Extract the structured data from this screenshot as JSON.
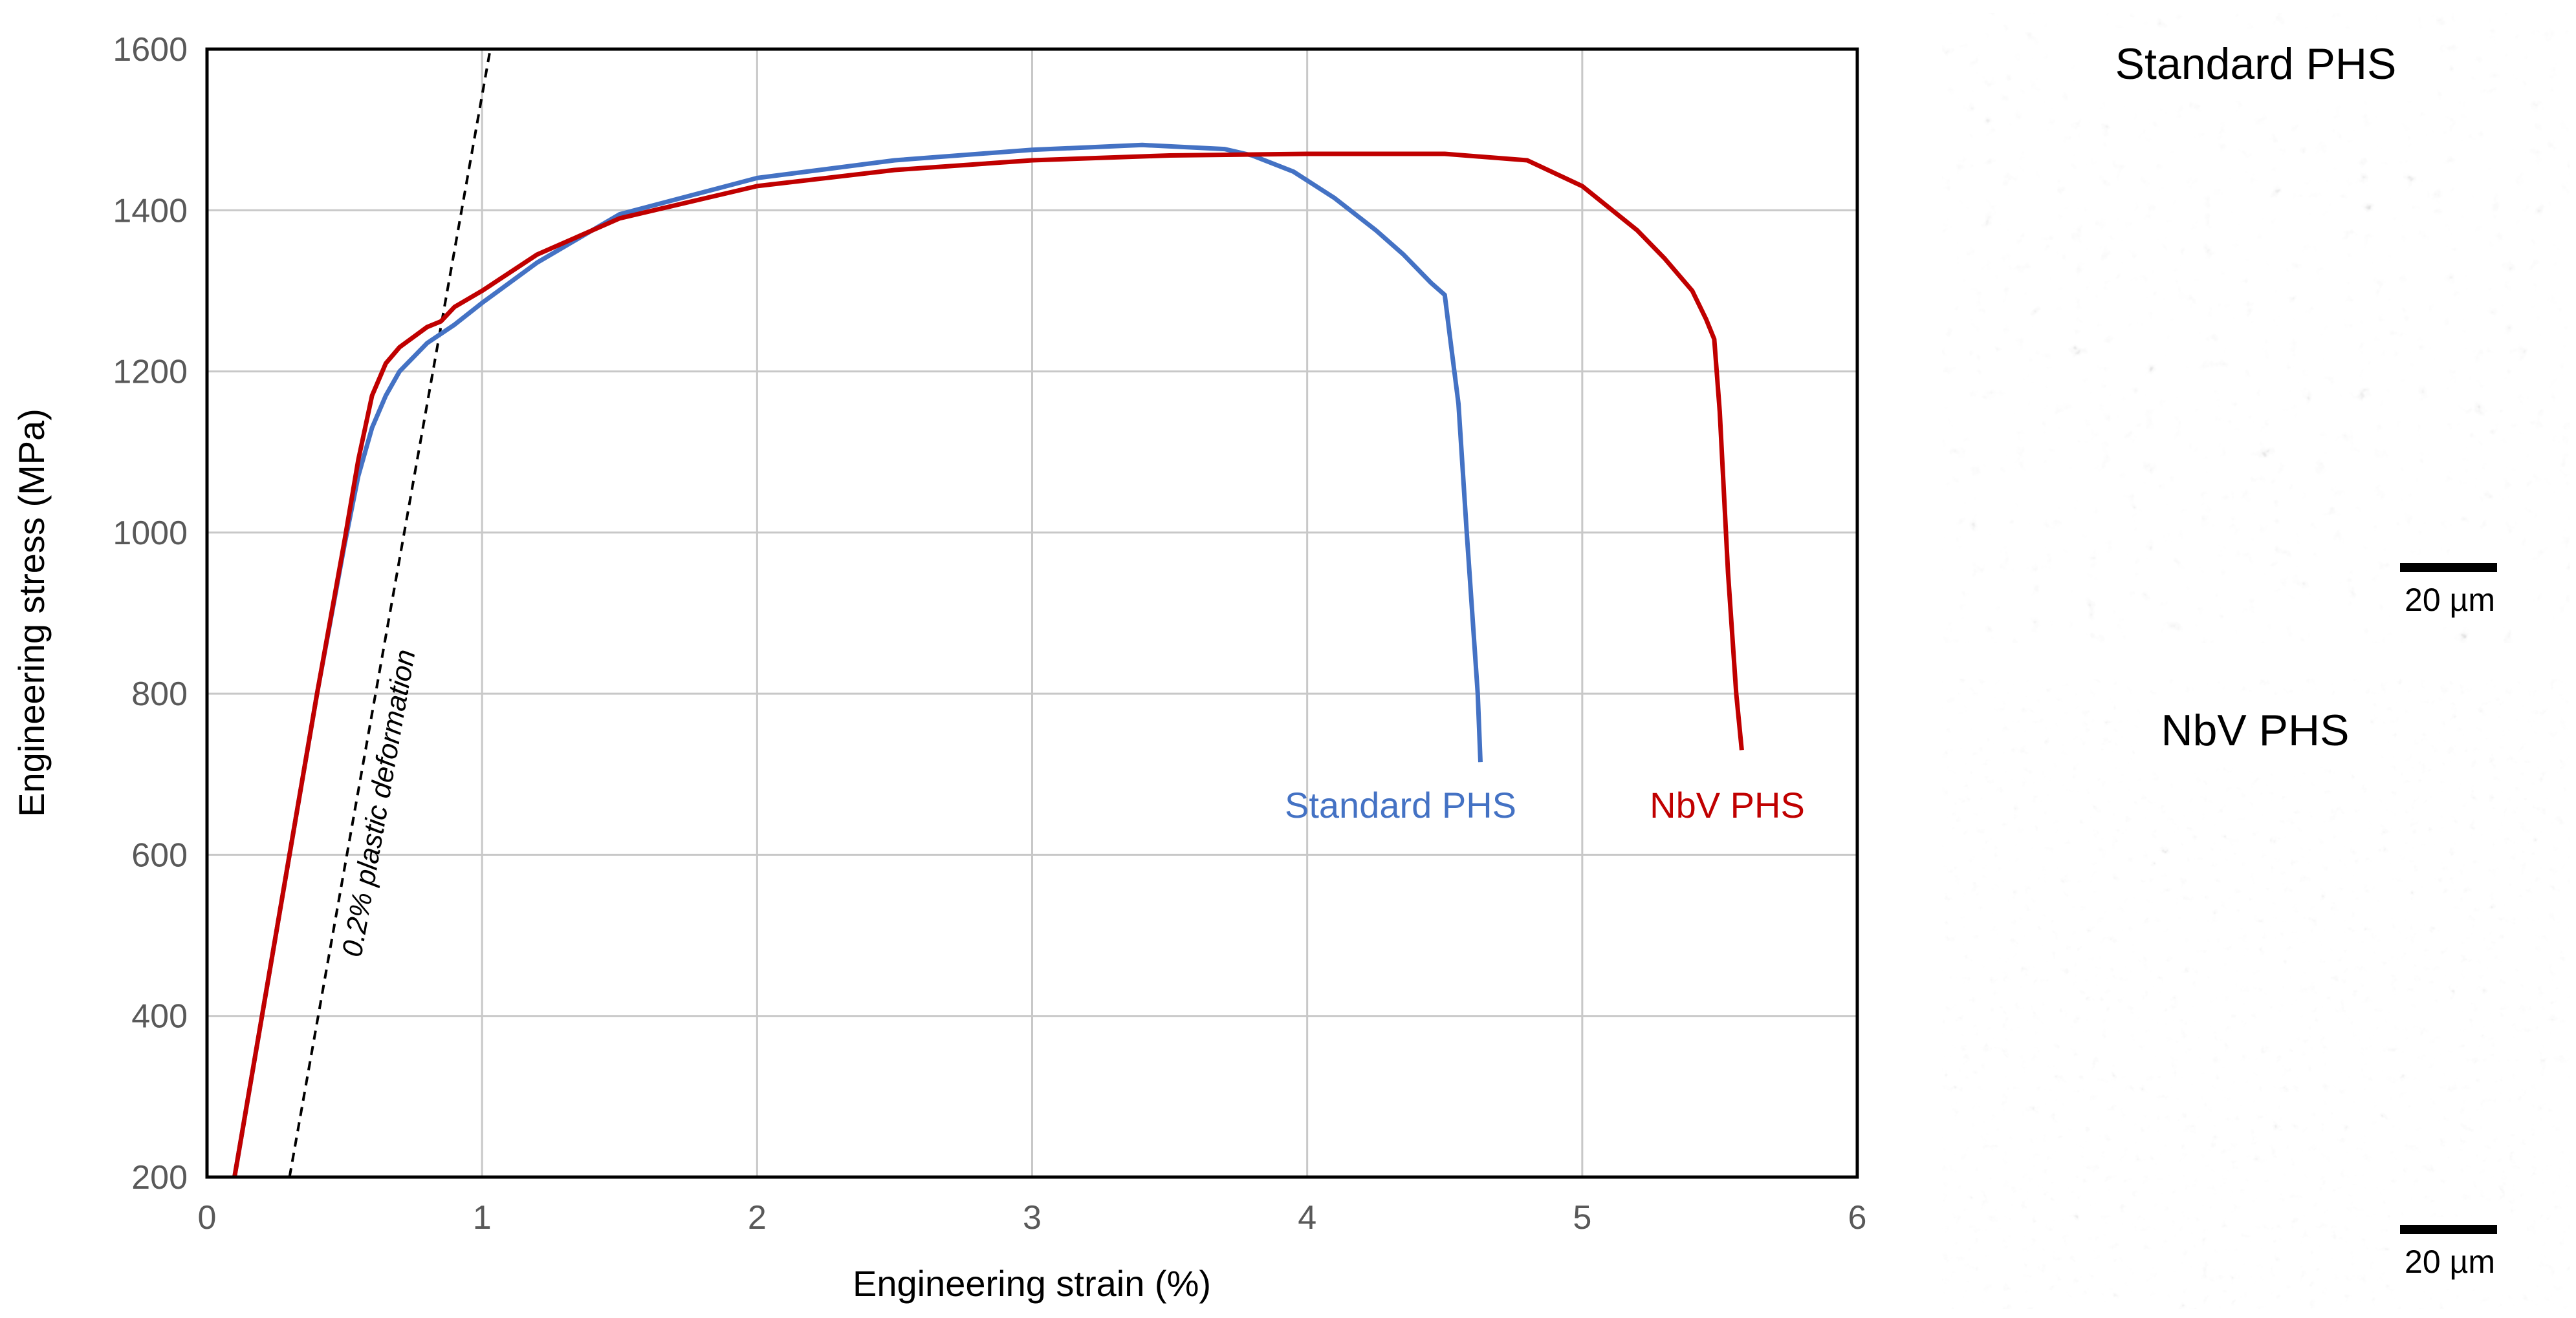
{
  "chart_data": {
    "type": "line",
    "xlabel": "Engineering strain (%)",
    "ylabel": "Engineering stress (MPa)",
    "xlim": [
      0,
      6
    ],
    "ylim": [
      200,
      1600
    ],
    "xticks": [
      0,
      1,
      2,
      3,
      4,
      5,
      6
    ],
    "yticks": [
      200,
      400,
      600,
      800,
      1000,
      1200,
      1400,
      1600
    ],
    "grid": true,
    "series": [
      {
        "name": "Standard PHS",
        "color": "#4472C4",
        "x": [
          0.1,
          0.2,
          0.3,
          0.4,
          0.5,
          0.55,
          0.6,
          0.65,
          0.7,
          0.8,
          0.9,
          1.0,
          1.2,
          1.5,
          2.0,
          2.5,
          3.0,
          3.4,
          3.7,
          3.8,
          3.95,
          4.1,
          4.25,
          4.35,
          4.45,
          4.5,
          4.52,
          4.55,
          4.58,
          4.6,
          4.62,
          4.63
        ],
        "y": [
          200,
          400,
          600,
          800,
          985,
          1070,
          1130,
          1170,
          1200,
          1235,
          1258,
          1285,
          1335,
          1395,
          1440,
          1462,
          1475,
          1481,
          1476,
          1468,
          1448,
          1415,
          1375,
          1345,
          1310,
          1295,
          1240,
          1160,
          1000,
          900,
          800,
          715
        ]
      },
      {
        "name": "NbV PHS",
        "color": "#C00000",
        "x": [
          0.1,
          0.2,
          0.3,
          0.4,
          0.5,
          0.55,
          0.6,
          0.65,
          0.7,
          0.8,
          0.85,
          0.9,
          1.0,
          1.2,
          1.5,
          2.0,
          2.5,
          3.0,
          3.5,
          4.0,
          4.5,
          4.8,
          5.0,
          5.2,
          5.3,
          5.4,
          5.45,
          5.48,
          5.5,
          5.53,
          5.56,
          5.58
        ],
        "y": [
          200,
          400,
          600,
          800,
          990,
          1090,
          1170,
          1210,
          1230,
          1255,
          1262,
          1280,
          1300,
          1345,
          1390,
          1430,
          1450,
          1462,
          1468,
          1470,
          1470,
          1462,
          1430,
          1375,
          1340,
          1300,
          1265,
          1240,
          1150,
          950,
          800,
          730
        ]
      }
    ],
    "reference_line": {
      "label": "0.2% plastic deformation",
      "x": [
        0.3,
        1.03
      ],
      "y": [
        200,
        1600
      ],
      "color": "#000000"
    },
    "annotations": {
      "standard_label": "Standard PHS",
      "nbv_label": "NbV PHS"
    }
  },
  "micrographs": [
    {
      "title": "Standard PHS",
      "scale_bar": "20 µm"
    },
    {
      "title": "NbV PHS",
      "scale_bar": "20 µm"
    }
  ]
}
